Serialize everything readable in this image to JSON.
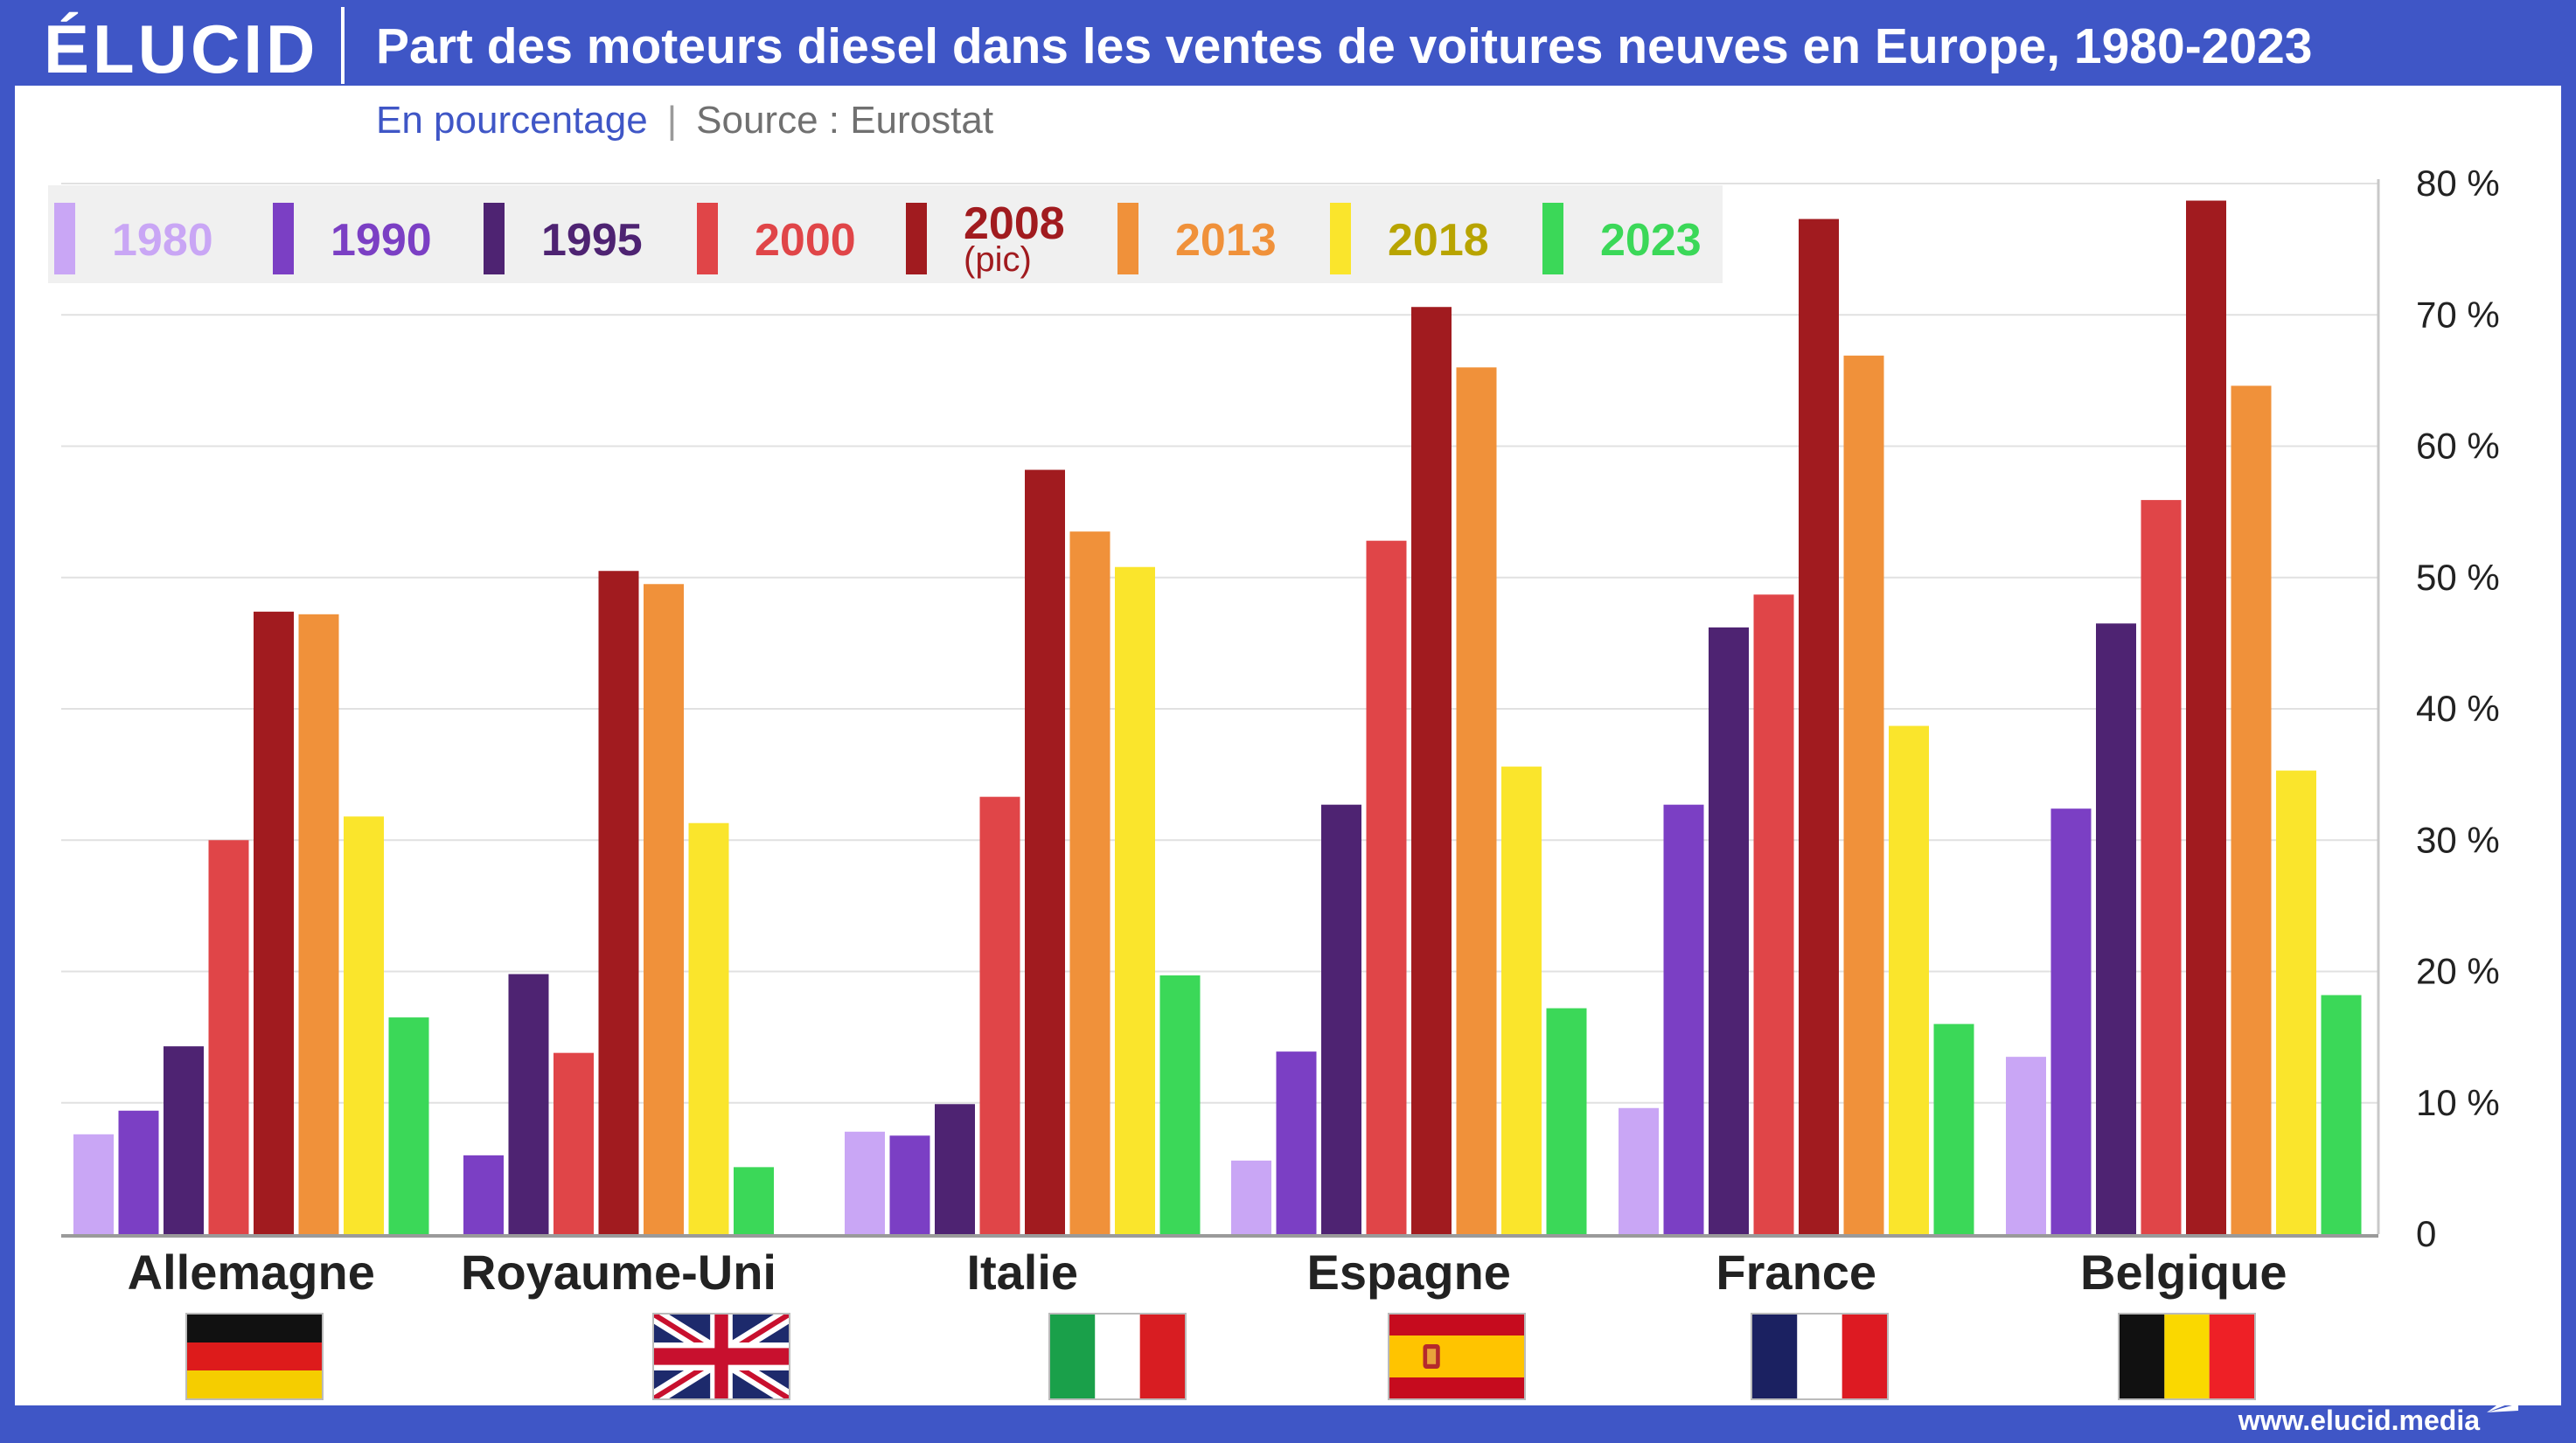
{
  "header": {
    "logo_text": "ÉLUCID",
    "title": "Part des moteurs diesel dans les ventes de voitures neuves en Europe, 1980-2023",
    "unit_label": "En pourcentage",
    "separator": "|",
    "source_label": "Source : Eurostat"
  },
  "footer": {
    "url": "www.elucid.media"
  },
  "colors": {
    "frame": "#3f56c6",
    "1980": "#c9a6f5",
    "1990": "#7b3fc4",
    "1995": "#4e2372",
    "2000": "#e04548",
    "2008": "#a11b1f",
    "2013": "#f0913a",
    "2018": "#fae52c",
    "2023": "#3bd858"
  },
  "chart_data": {
    "type": "bar",
    "title": "Part des moteurs diesel dans les ventes de voitures neuves en Europe, 1980-2023",
    "ylabel": "",
    "xlabel": "",
    "ylim": [
      0,
      80
    ],
    "yticks": [
      "0",
      "10 %",
      "20 %",
      "30 %",
      "40 %",
      "50 %",
      "60 %",
      "70 %",
      "80 %"
    ],
    "grid": true,
    "legend_position": "top-left",
    "categories": [
      "Allemagne",
      "Royaume-Uni",
      "Italie",
      "Espagne",
      "France",
      "Belgique"
    ],
    "series": [
      {
        "name": "1980",
        "legend_label": "1980",
        "legend_note": "",
        "color": "#c9a6f5",
        "values": [
          7.6,
          null,
          7.8,
          5.6,
          9.6,
          13.5
        ]
      },
      {
        "name": "1990",
        "legend_label": "1990",
        "legend_note": "",
        "color": "#7b3fc4",
        "values": [
          9.4,
          6.0,
          7.5,
          13.9,
          32.7,
          32.4
        ]
      },
      {
        "name": "1995",
        "legend_label": "1995",
        "legend_note": "",
        "color": "#4e2372",
        "values": [
          14.3,
          19.8,
          9.9,
          32.7,
          46.2,
          46.5
        ]
      },
      {
        "name": "2000",
        "legend_label": "2000",
        "legend_note": "",
        "color": "#e04548",
        "values": [
          30.0,
          13.8,
          33.3,
          52.8,
          48.7,
          55.9
        ]
      },
      {
        "name": "2008",
        "legend_label": "2008",
        "legend_note": "(pic)",
        "color": "#a11b1f",
        "values": [
          47.4,
          50.5,
          58.2,
          70.6,
          77.3,
          78.7
        ]
      },
      {
        "name": "2013",
        "legend_label": "2013",
        "legend_note": "",
        "color": "#f0913a",
        "values": [
          47.2,
          49.5,
          53.5,
          66.0,
          66.9,
          64.6
        ]
      },
      {
        "name": "2018",
        "legend_label": "2018",
        "legend_note": "",
        "color": "#fae52c",
        "values": [
          31.8,
          31.3,
          50.8,
          35.6,
          38.7,
          35.3
        ]
      },
      {
        "name": "2023",
        "legend_label": "2023",
        "legend_note": "",
        "color": "#3bd858",
        "values": [
          16.5,
          5.1,
          19.7,
          17.2,
          16.0,
          18.2
        ]
      }
    ],
    "flags": [
      "germany-flag",
      "uk-flag",
      "italy-flag",
      "spain-flag",
      "france-flag",
      "belgium-flag"
    ]
  }
}
